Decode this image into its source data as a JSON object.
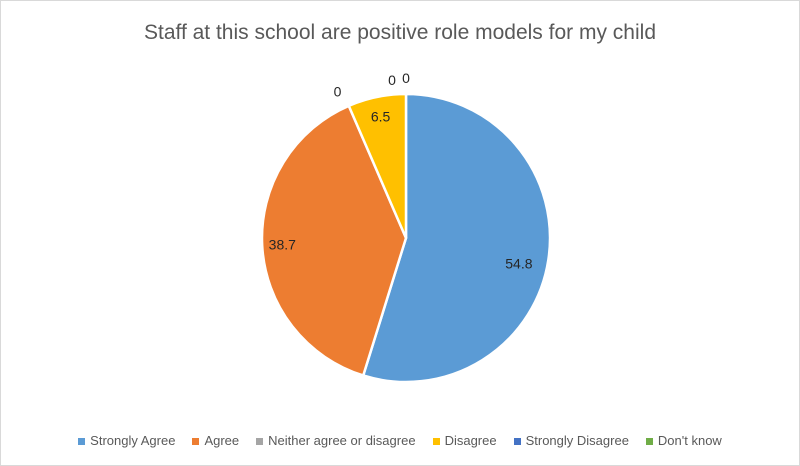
{
  "chart_data": {
    "type": "pie",
    "title": "Staff at this school are positive role models for my child",
    "categories": [
      "Strongly Agree",
      "Agree",
      "Neither agree or disagree",
      "Disagree",
      "Strongly Disagree",
      "Don't know"
    ],
    "values": [
      54.8,
      38.7,
      0,
      6.5,
      0,
      0
    ],
    "data_labels": [
      "54.8",
      "38.7",
      "0",
      "6.5",
      "0",
      "0"
    ],
    "colors": [
      "#5B9BD5",
      "#ED7D31",
      "#A5A5A5",
      "#FFC000",
      "#4472C4",
      "#70AD47"
    ],
    "start_angle_deg": 0,
    "direction": "clockwise",
    "legend_position": "bottom",
    "slice_border_color": "#FFFFFF",
    "title_color": "#595959",
    "legend_text_color": "#595959",
    "data_label_color": "#262626",
    "background_color": "#FFFFFF",
    "canvas_border_color": "#D9D9D9"
  }
}
